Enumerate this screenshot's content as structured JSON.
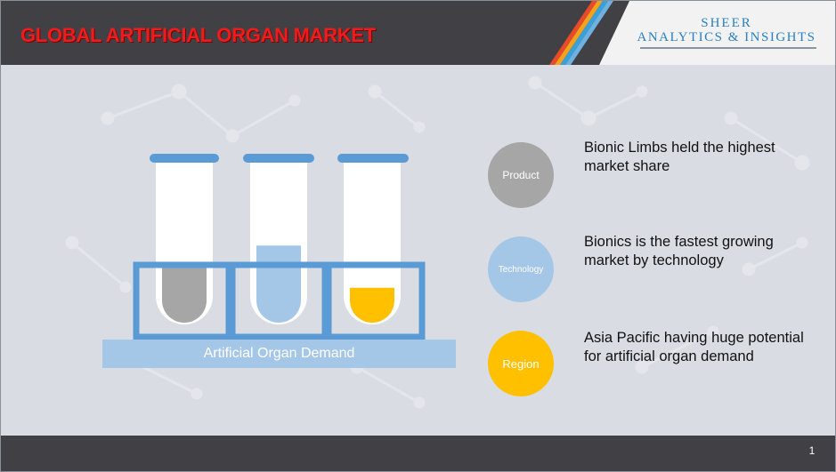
{
  "header": {
    "title": "GLOBAL ARTIFICIAL ORGAN MARKET",
    "logo_top": "SHEER",
    "logo_bottom": "ANALYTICS & INSIGHTS"
  },
  "illustration": {
    "base_label": "Artificial Organ Demand",
    "tubes": [
      {
        "name": "gray-tube",
        "fill_color": "#a6a6a6",
        "fill_level": 0.45
      },
      {
        "name": "blue-tube",
        "fill_color": "#a4c6e7",
        "fill_level": 0.62
      },
      {
        "name": "yellow-tube",
        "fill_color": "#ffc000",
        "fill_level": 0.28
      }
    ]
  },
  "segments": [
    {
      "circle_label": "Product",
      "color": "#a6a6a6",
      "text": "Bionic Limbs held the highest market share"
    },
    {
      "circle_label": "Technology",
      "color": "#a4c6e7",
      "text": "Bionics is the fastest growing market by technology"
    },
    {
      "circle_label": "Region",
      "color": "#ffc000",
      "text": "Asia Pacific having huge potential for artificial organ demand"
    }
  ],
  "footer": {
    "page_number": "1"
  },
  "colors": {
    "header_bg": "#404045",
    "title_red": "#ee1c1c",
    "rack_blue": "#5b9bd5",
    "brand_blue": "#2a7fc0"
  }
}
